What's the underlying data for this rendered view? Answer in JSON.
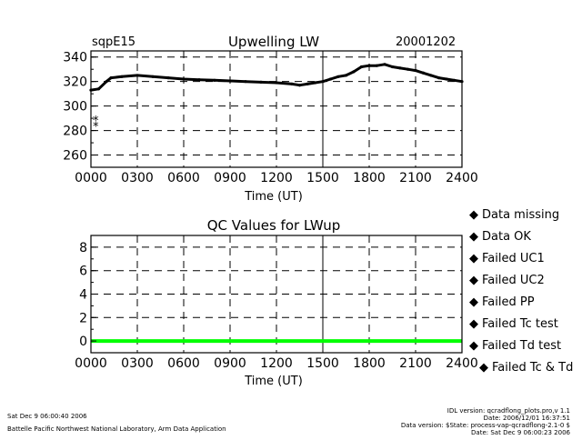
{
  "header": {
    "site": "sqpE15",
    "date": "20001202"
  },
  "legend": [
    {
      "label": "Data missing",
      "color": "#000000"
    },
    {
      "label": "Data OK",
      "color": "#00ff00"
    },
    {
      "label": "Failed UC1",
      "color": "#ffff00"
    },
    {
      "label": "Failed UC2",
      "color": "#ff8000"
    },
    {
      "label": "Failed PP",
      "color": "#ff0000"
    },
    {
      "label": "Failed Tc test",
      "color": "#ff00ff"
    },
    {
      "label": "Failed Td test",
      "color": "#00ffff"
    },
    {
      "label": "Failed Tc & Td",
      "color": "#0000ff"
    }
  ],
  "footer": {
    "left_line1": "Sat Dec  9 06:00:40 2006",
    "left_line2": "Battelle Pacific Northwest National Laboratory, Arm Data Application",
    "right_line1": "IDL version: qcradflong_plots.pro,v 1.1",
    "right_line2": "Date: 2006/12/01 16:37:51",
    "right_line3": "Data version: $State: process-vap-qcradflong-2.1-0 $",
    "right_line4": "Date: Sat Dec  9 06:00:23 2006"
  },
  "chart_data": [
    {
      "type": "line",
      "title": "Upwelling LW",
      "xlabel": "Time (UT)",
      "ylabel": "",
      "xlim": [
        0,
        2400
      ],
      "ylim": [
        250,
        345
      ],
      "xticks": [
        "0000",
        "0300",
        "0600",
        "0900",
        "1200",
        "1500",
        "1800",
        "2100",
        "2400"
      ],
      "yticks": [
        "260",
        "280",
        "300",
        "320",
        "340"
      ],
      "grid": true,
      "series": [
        {
          "color": "#000000",
          "x": [
            0,
            50,
            100,
            130,
            200,
            300,
            400,
            500,
            600,
            700,
            800,
            900,
            1000,
            1100,
            1200,
            1300,
            1350,
            1400,
            1450,
            1500,
            1550,
            1600,
            1650,
            1700,
            1750,
            1800,
            1850,
            1900,
            1950,
            2000,
            2050,
            2100,
            2150,
            2200,
            2250,
            2300,
            2350,
            2400
          ],
          "y": [
            313,
            314,
            320,
            323,
            324,
            325,
            324,
            323,
            322,
            321.5,
            321,
            320.5,
            320,
            319.5,
            319,
            318,
            317,
            318,
            319,
            320,
            322,
            324,
            325,
            328,
            332,
            333,
            333,
            334,
            332,
            331,
            330,
            329,
            327,
            325,
            323,
            322,
            321,
            320
          ]
        }
      ],
      "annotations": [
        {
          "x": 0,
          "y": 288,
          "text": "*"
        },
        {
          "x": 0,
          "y": 283,
          "text": "*"
        }
      ]
    },
    {
      "type": "line",
      "title": "QC Values for LWup",
      "xlabel": "Time (UT)",
      "ylabel": "",
      "xlim": [
        0,
        2400
      ],
      "ylim": [
        -1,
        9
      ],
      "xticks": [
        "0000",
        "0300",
        "0600",
        "0900",
        "1200",
        "1500",
        "1800",
        "2100",
        "2400"
      ],
      "yticks": [
        "0",
        "2",
        "4",
        "6",
        "8"
      ],
      "grid": true,
      "series": [
        {
          "name": "Data OK",
          "color": "#00ff00",
          "x": [
            0,
            2400
          ],
          "y": [
            0,
            0
          ]
        }
      ]
    }
  ]
}
